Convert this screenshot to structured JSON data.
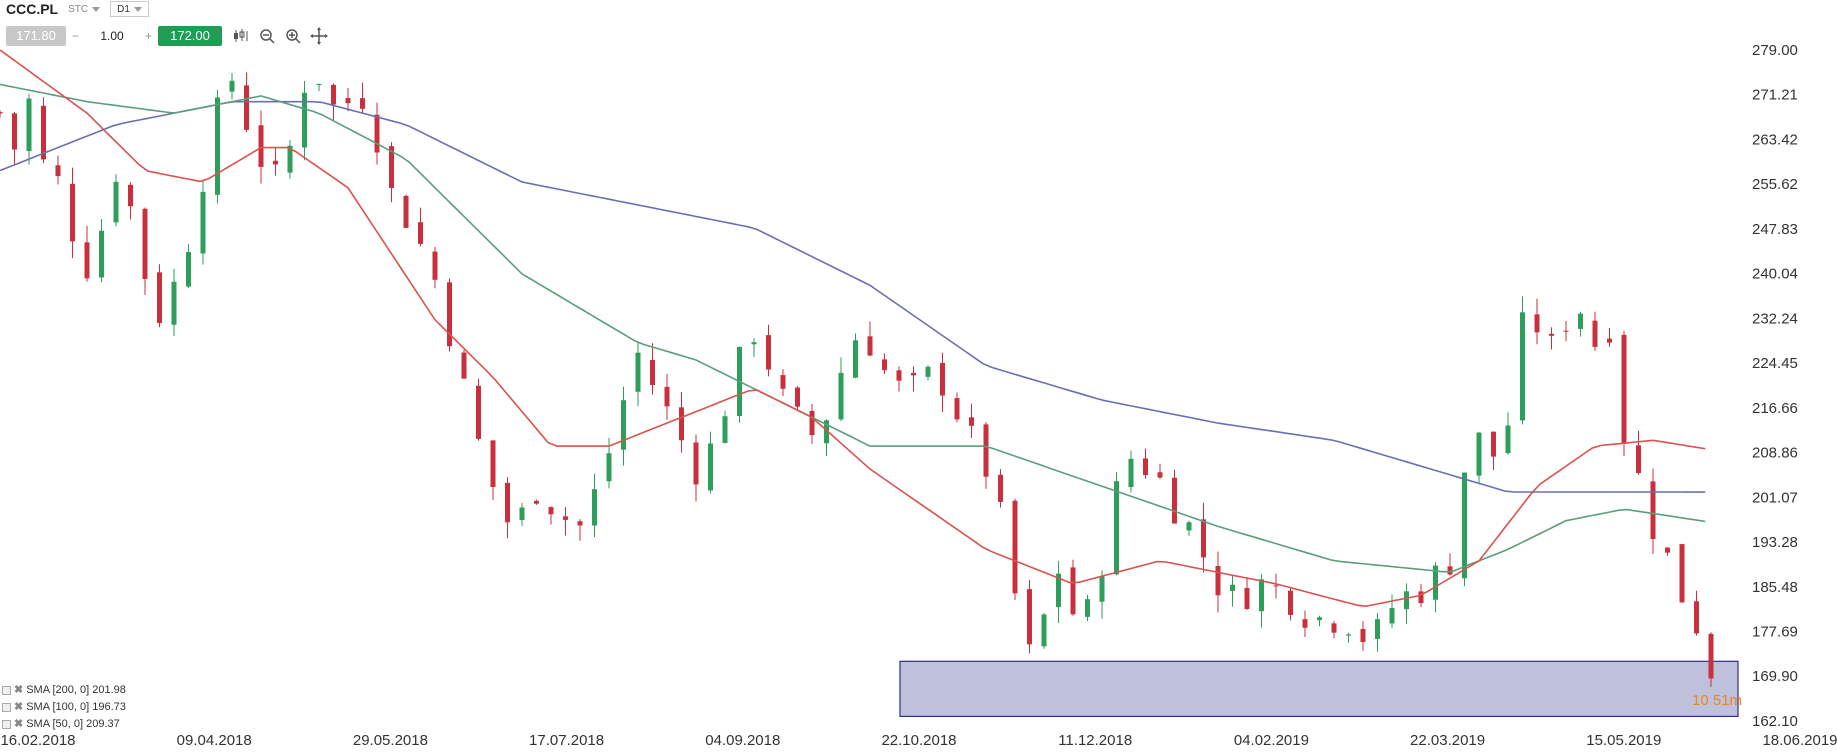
{
  "header": {
    "symbol": "CCC.PL",
    "type": "STC",
    "interval": "D1"
  },
  "trade": {
    "bid": "171.80",
    "qty_minus": "−",
    "qty": "1.00",
    "qty_plus": "+",
    "ask": "172.00"
  },
  "timer": "10 51m",
  "indicators": [
    {
      "label": "SMA [200, 0] 201.98",
      "color": "#6b6fb0"
    },
    {
      "label": "SMA [100, 0] 196.73",
      "color": "#5a9e7c"
    },
    {
      "label": "SMA [50, 0] 209.37",
      "color": "#d9534f"
    }
  ],
  "chart_data": {
    "type": "candlestick",
    "title": "CCC.PL",
    "y_ticks": [
      "279.00",
      "271.21",
      "263.42",
      "255.62",
      "247.83",
      "240.04",
      "232.24",
      "224.45",
      "216.66",
      "208.86",
      "201.07",
      "193.28",
      "185.48",
      "177.69",
      "169.90",
      "162.10"
    ],
    "ylim": [
      162.1,
      279.0
    ],
    "x_ticks": [
      "16.02.2018",
      "09.04.2018",
      "29.05.2018",
      "17.07.2018",
      "04.09.2018",
      "22.10.2018",
      "11.12.2018",
      "04.02.2019",
      "22.03.2019",
      "15.05.2019",
      "18.06.2019"
    ],
    "up_color": "#2e9e5b",
    "down_color": "#c9303d",
    "close_path": [
      [
        0,
        268
      ],
      [
        5,
        262
      ],
      [
        10,
        270
      ],
      [
        14,
        258
      ],
      [
        18,
        262
      ],
      [
        22,
        250
      ],
      [
        27,
        246
      ],
      [
        31,
        240
      ],
      [
        35,
        248
      ],
      [
        40,
        258
      ],
      [
        44,
        254
      ],
      [
        48,
        244
      ],
      [
        52,
        236
      ],
      [
        56,
        232
      ],
      [
        60,
        238
      ],
      [
        64,
        244
      ],
      [
        68,
        252
      ],
      [
        72,
        262
      ],
      [
        76,
        270
      ],
      [
        80,
        274
      ],
      [
        84,
        268
      ],
      [
        88,
        262
      ],
      [
        92,
        258
      ],
      [
        96,
        256
      ],
      [
        100,
        262
      ],
      [
        104,
        272
      ],
      [
        108,
        277
      ],
      [
        112,
        272
      ],
      [
        116,
        268
      ],
      [
        120,
        270
      ],
      [
        124,
        272
      ],
      [
        128,
        268
      ],
      [
        132,
        260
      ],
      [
        136,
        252
      ],
      [
        140,
        250
      ],
      [
        144,
        246
      ],
      [
        148,
        242
      ],
      [
        152,
        236
      ],
      [
        156,
        228
      ],
      [
        160,
        220
      ],
      [
        164,
        212
      ],
      [
        168,
        206
      ],
      [
        172,
        200
      ],
      [
        176,
        196
      ],
      [
        180,
        198
      ],
      [
        184,
        203
      ],
      [
        188,
        201
      ],
      [
        192,
        199
      ],
      [
        196,
        197
      ],
      [
        200,
        196
      ],
      [
        204,
        200
      ],
      [
        208,
        206
      ],
      [
        212,
        212
      ],
      [
        216,
        220
      ],
      [
        220,
        226
      ],
      [
        224,
        222
      ],
      [
        228,
        218
      ],
      [
        232,
        214
      ],
      [
        236,
        210
      ],
      [
        240,
        206
      ],
      [
        244,
        208
      ],
      [
        248,
        214
      ],
      [
        252,
        220
      ],
      [
        256,
        226
      ],
      [
        260,
        230
      ],
      [
        264,
        226
      ],
      [
        268,
        220
      ],
      [
        272,
        216
      ],
      [
        276,
        214
      ],
      [
        280,
        212
      ],
      [
        284,
        214
      ],
      [
        288,
        220
      ],
      [
        292,
        226
      ],
      [
        296,
        230
      ],
      [
        300,
        228
      ],
      [
        304,
        224
      ],
      [
        308,
        220
      ],
      [
        312,
        220
      ],
      [
        316,
        220
      ],
      [
        320,
        222
      ],
      [
        324,
        222
      ],
      [
        328,
        218
      ],
      [
        332,
        214
      ],
      [
        336,
        210
      ],
      [
        340,
        206
      ],
      [
        344,
        200
      ],
      [
        348,
        190
      ],
      [
        352,
        178
      ],
      [
        356,
        172
      ],
      [
        360,
        180
      ],
      [
        364,
        190
      ],
      [
        368,
        184
      ],
      [
        372,
        178
      ],
      [
        376,
        182
      ],
      [
        380,
        190
      ],
      [
        384,
        200
      ],
      [
        388,
        208
      ],
      [
        392,
        208
      ],
      [
        396,
        206
      ],
      [
        400,
        204
      ],
      [
        404,
        200
      ],
      [
        408,
        198
      ],
      [
        412,
        194
      ],
      [
        416,
        190
      ],
      [
        420,
        186
      ],
      [
        424,
        184
      ],
      [
        428,
        183
      ],
      [
        432,
        186
      ],
      [
        436,
        186
      ],
      [
        440,
        185
      ],
      [
        444,
        184
      ],
      [
        448,
        182
      ],
      [
        452,
        180
      ],
      [
        456,
        180
      ],
      [
        460,
        180
      ],
      [
        464,
        180
      ],
      [
        468,
        178
      ],
      [
        472,
        176
      ],
      [
        476,
        178
      ],
      [
        480,
        182
      ],
      [
        484,
        184
      ],
      [
        488,
        184
      ],
      [
        492,
        186
      ],
      [
        496,
        188
      ],
      [
        500,
        190
      ],
      [
        504,
        204
      ],
      [
        508,
        212
      ],
      [
        512,
        210
      ],
      [
        516,
        208
      ],
      [
        520,
        214
      ],
      [
        524,
        230
      ],
      [
        528,
        232
      ],
      [
        532,
        230
      ],
      [
        536,
        226
      ],
      [
        540,
        232
      ],
      [
        544,
        236
      ],
      [
        548,
        228
      ],
      [
        552,
        228
      ],
      [
        556,
        232
      ],
      [
        560,
        212
      ],
      [
        564,
        206
      ],
      [
        568,
        200
      ],
      [
        572,
        192
      ],
      [
        576,
        190
      ],
      [
        580,
        184
      ],
      [
        584,
        180
      ],
      [
        588,
        176
      ],
      [
        590,
        171
      ]
    ],
    "sma200": [
      [
        0,
        258
      ],
      [
        40,
        266
      ],
      [
        80,
        270
      ],
      [
        110,
        270
      ],
      [
        140,
        266
      ],
      [
        180,
        256
      ],
      [
        220,
        252
      ],
      [
        260,
        248
      ],
      [
        300,
        238
      ],
      [
        340,
        224
      ],
      [
        380,
        218
      ],
      [
        420,
        214
      ],
      [
        460,
        211
      ],
      [
        500,
        205
      ],
      [
        520,
        202
      ],
      [
        560,
        202
      ],
      [
        590,
        201.98
      ]
    ],
    "sma100": [
      [
        0,
        273
      ],
      [
        30,
        270
      ],
      [
        60,
        268
      ],
      [
        90,
        271
      ],
      [
        110,
        268
      ],
      [
        140,
        260
      ],
      [
        180,
        240
      ],
      [
        220,
        228
      ],
      [
        240,
        225
      ],
      [
        260,
        220
      ],
      [
        300,
        210
      ],
      [
        340,
        210
      ],
      [
        380,
        203
      ],
      [
        420,
        196
      ],
      [
        460,
        190
      ],
      [
        500,
        188
      ],
      [
        520,
        192
      ],
      [
        540,
        197
      ],
      [
        560,
        199
      ],
      [
        590,
        196.73
      ]
    ],
    "sma50": [
      [
        0,
        279
      ],
      [
        30,
        268
      ],
      [
        50,
        258
      ],
      [
        70,
        256
      ],
      [
        90,
        262
      ],
      [
        100,
        262
      ],
      [
        120,
        255
      ],
      [
        150,
        232
      ],
      [
        170,
        222
      ],
      [
        190,
        210
      ],
      [
        210,
        210
      ],
      [
        230,
        214
      ],
      [
        260,
        220
      ],
      [
        280,
        215
      ],
      [
        300,
        206
      ],
      [
        320,
        199
      ],
      [
        340,
        192
      ],
      [
        370,
        186
      ],
      [
        400,
        190
      ],
      [
        440,
        186
      ],
      [
        470,
        182
      ],
      [
        490,
        184
      ],
      [
        510,
        190
      ],
      [
        530,
        203
      ],
      [
        550,
        210
      ],
      [
        570,
        211
      ],
      [
        590,
        209.37
      ]
    ],
    "support_zone": {
      "y_low": 162.9,
      "y_high": 172.5
    }
  }
}
